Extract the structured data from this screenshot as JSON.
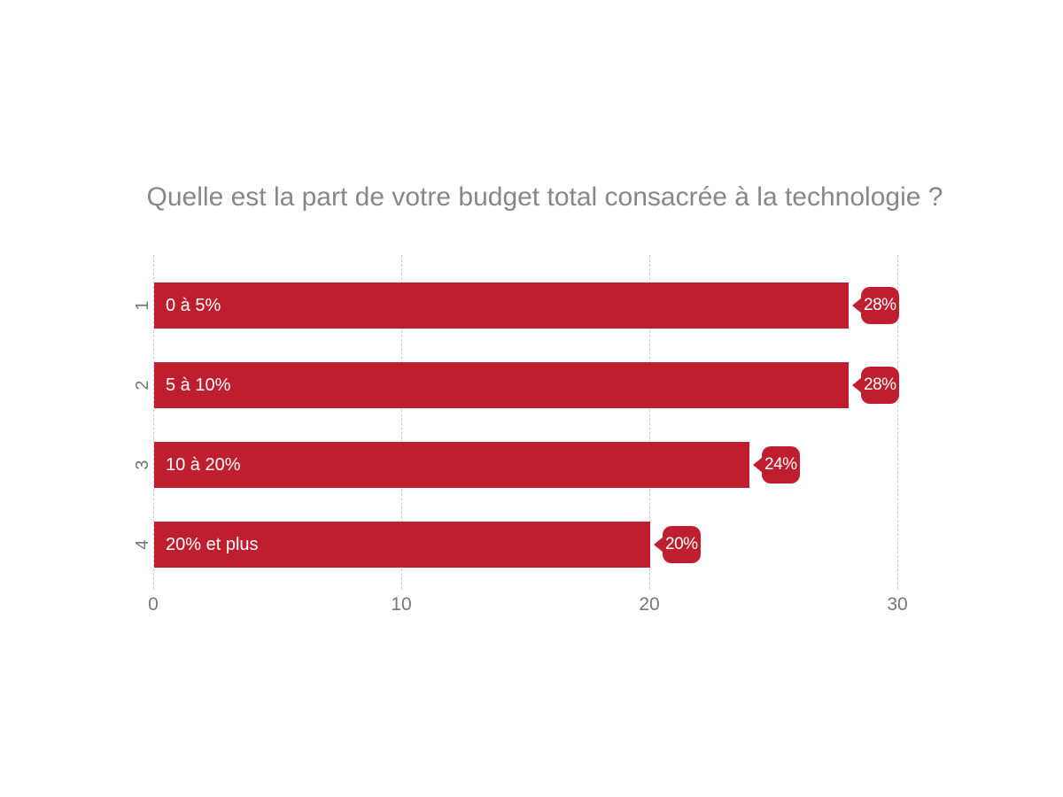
{
  "figure": {
    "background": "#FFFFFF"
  },
  "chart_data": {
    "type": "bar",
    "orientation": "horizontal",
    "title": "Quelle est la part de votre budget total consacrée à la technologie ?",
    "categories": [
      "1",
      "2",
      "3",
      "4"
    ],
    "bar_labels": [
      "0 à 5%",
      "5 à 10%",
      "10 à 20%",
      "20% et plus"
    ],
    "values": [
      28,
      28,
      24,
      20
    ],
    "value_labels": [
      "28%",
      "28%",
      "24%",
      "20%"
    ],
    "x_ticks": [
      "0",
      "10",
      "20",
      "30"
    ],
    "xlim": [
      0,
      30
    ],
    "grid": {
      "vertical": true,
      "style": "dashed"
    },
    "legend": "none",
    "colors": {
      "bar": "#BE1E2D",
      "value_bubble": "#BE1E2D",
      "bubble_text": "#FFFFFF",
      "bar_label_text": "#FFFFFF",
      "title_text": "#85878A",
      "axis_text": "#767676",
      "gridline": "#C9C9C9",
      "background": "#FFFFFF"
    }
  }
}
